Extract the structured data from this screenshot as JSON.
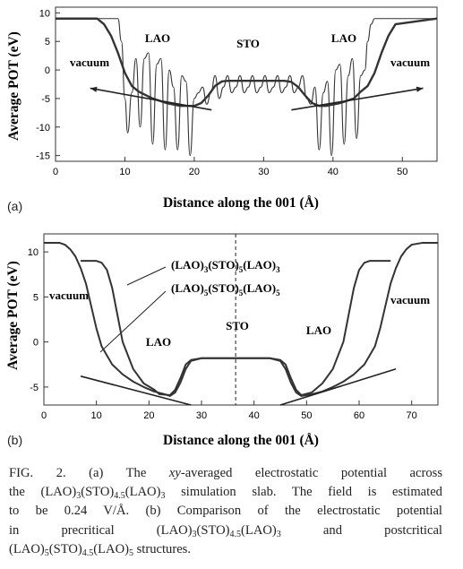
{
  "figure_label": "FIG. 2.",
  "chart_data": [
    {
      "panel": "(a)",
      "type": "line",
      "ylabel": "Average POT (eV)",
      "xlabel": "Distance along the 001 (Å)",
      "xlim": [
        0,
        55
      ],
      "ylim": [
        -16,
        11
      ],
      "xticks": [
        0,
        10,
        20,
        30,
        40,
        50
      ],
      "yticks": [
        10,
        5,
        0,
        -5,
        -10,
        -15
      ],
      "grid": false,
      "annotations": [
        "vacuum",
        "LAO",
        "STO",
        "LAO",
        "vacuum"
      ],
      "series": [
        {
          "style": "oscillating",
          "x": [
            0,
            9,
            9.5,
            10,
            10.4,
            11,
            11.6,
            12.2,
            12.8,
            13.4,
            14,
            14.6,
            15.2,
            15.8,
            16.4,
            17,
            17.6,
            18.2,
            18.8,
            19.4,
            20,
            20.6,
            21.2,
            21.8,
            22.4,
            23,
            23.6,
            24.2,
            24.8,
            25.4,
            26,
            26.6,
            27.2,
            27.8,
            28.4,
            29,
            29.6,
            30.2,
            30.8,
            31.4,
            32,
            32.6,
            33.2,
            33.8,
            34.4,
            35,
            35.6,
            36.2,
            36.8,
            37.4,
            38,
            38.6,
            39.2,
            39.8,
            40.4,
            41,
            41.6,
            42.2,
            42.8,
            43.4,
            44,
            44.6,
            45,
            45.5,
            46,
            55
          ],
          "y": [
            9,
            9,
            5,
            -5,
            -11,
            -4,
            2,
            -10,
            2,
            3,
            -13,
            1,
            2,
            -14,
            0,
            -3,
            -14,
            -1,
            -2,
            -15,
            -5,
            -4,
            -3,
            -6,
            -4,
            -1,
            -5,
            -3,
            -1,
            -4,
            -3,
            -1,
            -4,
            -3,
            -1,
            -4,
            -3,
            -1,
            -4,
            -3,
            -1,
            -4,
            -3,
            -1,
            -4,
            -3,
            -1,
            -5,
            -6,
            -3,
            -14,
            -4,
            -2,
            -15,
            0,
            1,
            -13,
            -1,
            2,
            -12,
            -1,
            0,
            5,
            8,
            9,
            9
          ]
        },
        {
          "style": "averaged",
          "x": [
            0,
            6,
            7,
            8,
            9,
            10,
            11,
            12,
            14,
            16,
            18,
            20,
            21,
            22,
            23,
            24,
            25,
            27,
            29,
            31,
            33,
            34,
            35,
            36,
            37,
            38,
            39,
            41,
            43,
            44,
            45,
            46,
            47,
            48,
            49,
            55
          ],
          "y": [
            9,
            9,
            8,
            6,
            3,
            -0.5,
            -2.8,
            -3.8,
            -5,
            -5.8,
            -6.3,
            -6.3,
            -5.8,
            -4.5,
            -2.8,
            -2,
            -1.9,
            -1.9,
            -1.9,
            -1.9,
            -1.9,
            -2.1,
            -3,
            -4.5,
            -5.8,
            -6.3,
            -6.3,
            -5.8,
            -5,
            -3.8,
            -2.8,
            -0.5,
            3,
            6,
            8,
            9
          ]
        },
        {
          "style": "field-fit-left",
          "x": [
            5,
            22.5
          ],
          "y": [
            -3.2,
            -7
          ]
        },
        {
          "style": "field-fit-right",
          "x": [
            34,
            53
          ],
          "y": [
            -7,
            -3.2
          ]
        }
      ]
    },
    {
      "panel": "(b)",
      "type": "line",
      "ylabel": "Average POT (eV)",
      "xlabel": "Distance along the 001 (Å)",
      "xlim": [
        0,
        75
      ],
      "ylim": [
        -7,
        12
      ],
      "xticks": [
        0,
        10,
        20,
        30,
        40,
        50,
        60,
        70
      ],
      "yticks": [
        10,
        5,
        0,
        -5
      ],
      "grid": false,
      "dashed_vline_x": 36.5,
      "annotations": [
        "vacuum",
        "LAO",
        "STO",
        "LAO",
        "vacuum"
      ],
      "legend_labels": [
        "(LAO)3(STO)5(LAO)3",
        "(LAO)5(STO)5(LAO)5"
      ],
      "series": [
        {
          "name": "(LAO)3(STO)5(LAO)3",
          "x": [
            7,
            10,
            11,
            12,
            13,
            14,
            15,
            17,
            19,
            21,
            22,
            24,
            25,
            26,
            27,
            28,
            30,
            36.5,
            43,
            45,
            46,
            47,
            48,
            49,
            51,
            53,
            55,
            57,
            58,
            59,
            60,
            61,
            62,
            63,
            66
          ],
          "y": [
            9,
            9,
            8.8,
            8,
            6,
            3,
            0,
            -3,
            -4.6,
            -5.3,
            -5.8,
            -5.9,
            -5.3,
            -4,
            -2.5,
            -2,
            -1.8,
            -1.8,
            -1.8,
            -2,
            -2.5,
            -4,
            -5.3,
            -5.9,
            -5.6,
            -4.6,
            -3,
            0,
            3,
            6,
            8,
            8.8,
            9,
            9,
            9
          ]
        },
        {
          "name": "(LAO)5(STO)5(LAO)5",
          "x": [
            0,
            3,
            4,
            5,
            6,
            7,
            8,
            9,
            10,
            11,
            13,
            15,
            17,
            19,
            21,
            23,
            24,
            25,
            26,
            27,
            28,
            30,
            36.5,
            43,
            45,
            46,
            47,
            48,
            49,
            51,
            53,
            55,
            57,
            59,
            61,
            63,
            64,
            65,
            66,
            67,
            68,
            69,
            70,
            72,
            75
          ],
          "y": [
            11,
            11,
            10.8,
            10.3,
            9.5,
            8.2,
            6.5,
            4,
            1.5,
            -0.5,
            -2.5,
            -3.6,
            -4.4,
            -5,
            -5.5,
            -5.8,
            -6,
            -5.6,
            -4.5,
            -3,
            -2.1,
            -1.8,
            -1.8,
            -1.8,
            -2.1,
            -3,
            -4.5,
            -5.6,
            -6,
            -5.8,
            -5.5,
            -5,
            -4.4,
            -3.6,
            -2.5,
            -0.5,
            1.5,
            4,
            6.5,
            8.2,
            9.5,
            10.3,
            10.8,
            11,
            11
          ]
        },
        {
          "style": "field-fit-left",
          "x": [
            7,
            28
          ],
          "y": [
            -3.8,
            -7
          ]
        },
        {
          "style": "field-fit-right",
          "x": [
            45,
            67
          ],
          "y": [
            -7,
            -3
          ]
        }
      ]
    }
  ],
  "caption": {
    "lines": [
      "FIG. 2. (a) The xy-averaged electrostatic potential across",
      "the (LAO)3(STO)4.5(LAO)3 simulation slab. The field is estimated",
      "to be 0.24 V/Å. (b) Comparison of the electrostatic potential",
      "in precritical (LAO)3(STO)4.5(LAO)3 and postcritical",
      "(LAO)5(STO)4.5(LAO)5 structures."
    ]
  },
  "panel_a": {
    "label": "(a)",
    "ylabel": "Average POT (eV)",
    "xlabel": "Distance along the 001 (Å)",
    "text_vacuum_left": "vacuum",
    "text_vacuum_right": "vacuum",
    "text_lao_left": "LAO",
    "text_sto": "STO",
    "text_lao_right": "LAO"
  },
  "panel_b": {
    "label": "(b)",
    "ylabel": "Average POT (eV)",
    "xlabel": "Distance along the 001 (Å)",
    "text_vacuum_left": "vacuum",
    "text_vacuum_right": "vacuum",
    "text_lao_left": "LAO",
    "text_sto": "STO",
    "text_lao_right": "LAO",
    "legend_1": "(LAO)3(STO)5(LAO)3",
    "legend_2": "(LAO)5(STO)5(LAO)5"
  }
}
